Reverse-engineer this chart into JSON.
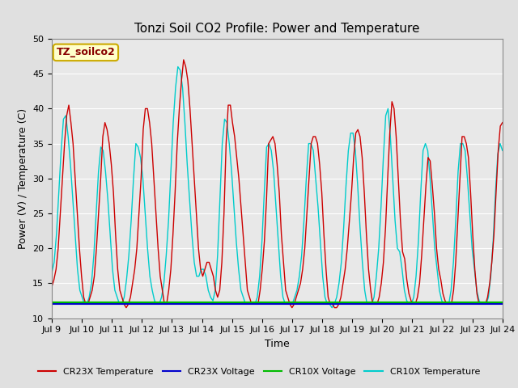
{
  "title": "Tonzi Soil CO2 Profile: Power and Temperature",
  "xlabel": "Time",
  "ylabel": "Power (V) / Temperature (C)",
  "ylim": [
    10,
    50
  ],
  "yticks": [
    10,
    15,
    20,
    25,
    30,
    35,
    40,
    45,
    50
  ],
  "xlim": [
    0,
    15
  ],
  "xtick_labels": [
    "Jul 9",
    "Jul 10",
    "Jul 11",
    "Jul 12",
    "Jul 13",
    "Jul 14",
    "Jul 15",
    "Jul 16",
    "Jul 17",
    "Jul 18",
    "Jul 19",
    "Jul 20",
    "Jul 21",
    "Jul 22",
    "Jul 23",
    "Jul 24"
  ],
  "fig_bg_color": "#e0e0e0",
  "plot_bg_color": "#e8e8e8",
  "annotation_text": "TZ_soilco2",
  "annotation_bg": "#ffffcc",
  "annotation_border": "#ccaa00",
  "legend_entries": [
    {
      "label": "CR23X Temperature",
      "color": "#cc0000",
      "lw": 1.5
    },
    {
      "label": "CR23X Voltage",
      "color": "#0000cc",
      "lw": 1.5
    },
    {
      "label": "CR10X Voltage",
      "color": "#00bb00",
      "lw": 1.5
    },
    {
      "label": "CR10X Temperature",
      "color": "#00cccc",
      "lw": 1.5
    }
  ],
  "cr23x_temp": [
    14.5,
    15.5,
    17,
    20,
    25,
    30,
    35,
    39,
    40.5,
    38,
    35,
    30,
    25,
    20,
    16,
    13,
    12,
    12,
    13,
    14,
    16,
    20,
    25,
    30,
    36,
    38,
    37,
    35,
    32,
    28,
    22,
    17,
    14,
    13,
    12,
    11.5,
    12,
    13,
    15,
    17,
    20,
    25,
    30,
    37,
    40,
    40,
    38,
    35,
    30,
    25,
    20,
    16,
    14,
    12,
    12,
    14,
    17,
    22,
    28,
    35,
    40,
    44,
    47,
    46,
    44,
    40,
    35,
    30,
    25,
    20,
    17,
    16,
    17,
    18,
    18,
    17,
    16,
    14,
    13,
    14,
    18,
    25,
    35,
    40.5,
    40.5,
    38,
    36,
    33,
    30,
    26,
    22,
    18,
    14,
    13,
    12,
    12,
    12,
    12,
    14,
    17,
    21,
    27,
    35,
    35.5,
    36,
    35,
    32,
    28,
    22,
    18,
    14,
    13,
    12,
    11.5,
    12,
    13,
    14,
    15,
    17,
    20,
    25,
    30,
    35,
    36,
    36,
    35,
    32,
    28,
    22,
    17,
    13,
    12,
    12,
    11.5,
    11.5,
    12,
    13,
    15,
    17,
    20,
    24,
    28,
    33,
    36.5,
    37,
    36,
    33,
    28,
    22,
    17,
    14,
    12,
    12,
    12,
    13,
    15,
    18,
    23,
    30,
    36.5,
    41,
    40,
    36,
    30,
    24,
    19.5,
    18.5,
    15.5,
    13.5,
    12.5,
    12,
    12,
    13,
    15,
    19,
    24,
    29,
    33,
    32.5,
    29,
    25,
    20,
    17,
    15.5,
    13.5,
    12.5,
    12,
    12,
    12,
    14,
    18,
    24,
    30,
    36,
    36,
    35,
    33,
    28,
    22,
    17,
    13.5,
    12,
    12,
    12,
    12,
    13,
    15,
    18,
    22,
    28,
    34,
    37.5,
    38
  ],
  "cr10x_temp": [
    16.5,
    18,
    22,
    28,
    34,
    38.5,
    39,
    36,
    32,
    27,
    22,
    17,
    14,
    13,
    12,
    12,
    13,
    15,
    19,
    25,
    31,
    34.5,
    34,
    31,
    27,
    22,
    17,
    14,
    13,
    12,
    12,
    13,
    15.5,
    19,
    24,
    30,
    35,
    34.5,
    33,
    30,
    25,
    20,
    16,
    14,
    12.5,
    12,
    12,
    13,
    15,
    19,
    24,
    31,
    38,
    43,
    46,
    45.5,
    43,
    38,
    32,
    27,
    22,
    18,
    16,
    16,
    17,
    17,
    16,
    14,
    13,
    12.5,
    14,
    19,
    27,
    35,
    38.5,
    38,
    35,
    31,
    26,
    21,
    17,
    14,
    13,
    12,
    12,
    12,
    12,
    12,
    13,
    16,
    21,
    28,
    34.5,
    35,
    34,
    31,
    26,
    21,
    16,
    13,
    12,
    12,
    12,
    12,
    13,
    14,
    16,
    19,
    24,
    30,
    35,
    35,
    34,
    30,
    26,
    21,
    16,
    13,
    12,
    12,
    11.5,
    12,
    13,
    15,
    18,
    23,
    29,
    34,
    36.5,
    36.5,
    34,
    29,
    23,
    18,
    14,
    12,
    12,
    12,
    13,
    16,
    20,
    26,
    33,
    39,
    40,
    36,
    30,
    24,
    20,
    19.5,
    17,
    14,
    12.5,
    12,
    12,
    13,
    16,
    21,
    28,
    34,
    35,
    34,
    30,
    25,
    20,
    17,
    14,
    12.5,
    12,
    12,
    12,
    14,
    18,
    24,
    31,
    35,
    35,
    34,
    30,
    25,
    20,
    17,
    14,
    12.5,
    12,
    12,
    12,
    13,
    16,
    21,
    28,
    33.5,
    35,
    34
  ],
  "cr23x_voltage": 12.0,
  "cr10x_voltage": 12.3,
  "title_fontsize": 11,
  "label_fontsize": 9,
  "tick_fontsize": 8
}
